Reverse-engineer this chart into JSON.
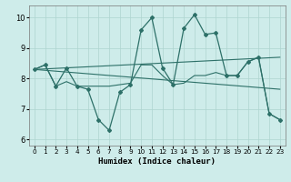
{
  "xlabel": "Humidex (Indice chaleur)",
  "bg_color": "#ceecea",
  "grid_color": "#aed4d0",
  "line_color": "#2d7068",
  "xlim": [
    -0.5,
    23.5
  ],
  "ylim": [
    5.8,
    10.4
  ],
  "yticks": [
    6,
    7,
    8,
    9,
    10
  ],
  "xticks": [
    0,
    1,
    2,
    3,
    4,
    5,
    6,
    7,
    8,
    9,
    10,
    11,
    12,
    13,
    14,
    15,
    16,
    17,
    18,
    19,
    20,
    21,
    22,
    23
  ],
  "line1_x": [
    0,
    1,
    2,
    3,
    4,
    5,
    6,
    7,
    8,
    9,
    10,
    11,
    12,
    13,
    14,
    15,
    16,
    17,
    18,
    19,
    20,
    21,
    22,
    23
  ],
  "line1_y": [
    8.3,
    8.45,
    7.75,
    8.35,
    7.75,
    7.65,
    6.65,
    6.3,
    7.55,
    7.8,
    9.6,
    10.0,
    8.35,
    7.8,
    9.65,
    10.1,
    9.45,
    9.5,
    8.1,
    8.1,
    8.55,
    8.7,
    6.85,
    6.65
  ],
  "line2_x": [
    0,
    1,
    2,
    3,
    4,
    5,
    6,
    7,
    8,
    9,
    10,
    11,
    12,
    13,
    14,
    15,
    16,
    17,
    18,
    19,
    20,
    21,
    22,
    23
  ],
  "line2_y": [
    8.3,
    8.45,
    7.75,
    7.9,
    7.75,
    7.75,
    7.75,
    7.75,
    7.8,
    7.85,
    8.45,
    8.45,
    8.1,
    7.8,
    7.85,
    8.1,
    8.1,
    8.2,
    8.1,
    8.1,
    8.55,
    8.7,
    6.85,
    6.65
  ],
  "line3_x": [
    0,
    23
  ],
  "line3_y": [
    8.3,
    7.65
  ],
  "line4_x": [
    0,
    23
  ],
  "line4_y": [
    8.3,
    8.7
  ]
}
